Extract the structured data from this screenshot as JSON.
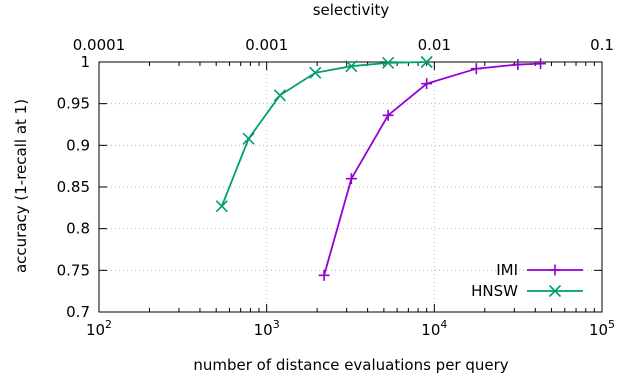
{
  "chart_data": {
    "type": "line",
    "title": "",
    "xlabel": "number of distance evaluations per query",
    "ylabel": "accuracy (1-recall at 1)",
    "x2label": "selectivity",
    "xscale": "log",
    "xlim": [
      100,
      100000
    ],
    "ylim": [
      0.7,
      1.0
    ],
    "grid": true,
    "legend_position": "bottom-right",
    "x_ticks": [
      {
        "base": "10",
        "exp": "2"
      },
      {
        "base": "10",
        "exp": "3"
      },
      {
        "base": "10",
        "exp": "4"
      },
      {
        "base": "10",
        "exp": "5"
      }
    ],
    "x2_ticks": [
      "0.0001",
      "0.001",
      "0.01",
      "0.1"
    ],
    "y_ticks": [
      "0.7",
      "0.75",
      "0.8",
      "0.85",
      "0.9",
      "0.95",
      "1"
    ],
    "series": [
      {
        "name": "IMI",
        "color": "#9400d3",
        "marker": "plus",
        "x": [
          2200,
          3200,
          5300,
          9000,
          17800,
          31500,
          43000
        ],
        "y": [
          0.744,
          0.86,
          0.936,
          0.974,
          0.992,
          0.997,
          0.998
        ]
      },
      {
        "name": "HNSW",
        "color": "#009e73",
        "marker": "cross",
        "x": [
          540,
          780,
          1200,
          1950,
          3200,
          5300,
          9000
        ],
        "y": [
          0.827,
          0.908,
          0.96,
          0.987,
          0.995,
          0.999,
          1.0
        ]
      }
    ]
  }
}
